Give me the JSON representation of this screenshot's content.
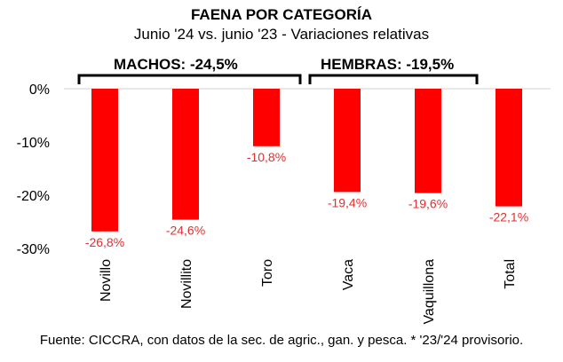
{
  "chart_data": {
    "type": "bar",
    "title": "FAENA POR CATEGORÍA",
    "subtitle": "Junio '24 vs. junio '23 - Variaciones relativas",
    "categories": [
      "Novillo",
      "Novillito",
      "Toro",
      "Vaca",
      "Vaquillona",
      "Total"
    ],
    "values": [
      -26.8,
      -24.6,
      -10.8,
      -19.4,
      -19.6,
      -22.1
    ],
    "data_labels": [
      "-26,8%",
      "-24,6%",
      "-10,8%",
      "-19,4%",
      "-19,6%",
      "-22,1%"
    ],
    "yticks": [
      0,
      -10,
      -20,
      -30
    ],
    "ytick_labels": [
      "0%",
      "-10%",
      "-20%",
      "-30%"
    ],
    "ylim": [
      -30,
      0
    ],
    "xlabel": "",
    "ylabel": "",
    "grid": false,
    "groups": [
      {
        "label": "MACHOS: -24,5%",
        "categories": [
          "Novillo",
          "Novillito",
          "Toro"
        ]
      },
      {
        "label": "HEMBRAS: -19,5%",
        "categories": [
          "Vaca",
          "Vaquillona"
        ]
      }
    ],
    "bar_color": "#ff0000",
    "label_color": "#e03030",
    "source": "Fuente: CICCRA, con datos de la sec. de agric., gan. y pesca. * '23/'24 provisorio."
  }
}
